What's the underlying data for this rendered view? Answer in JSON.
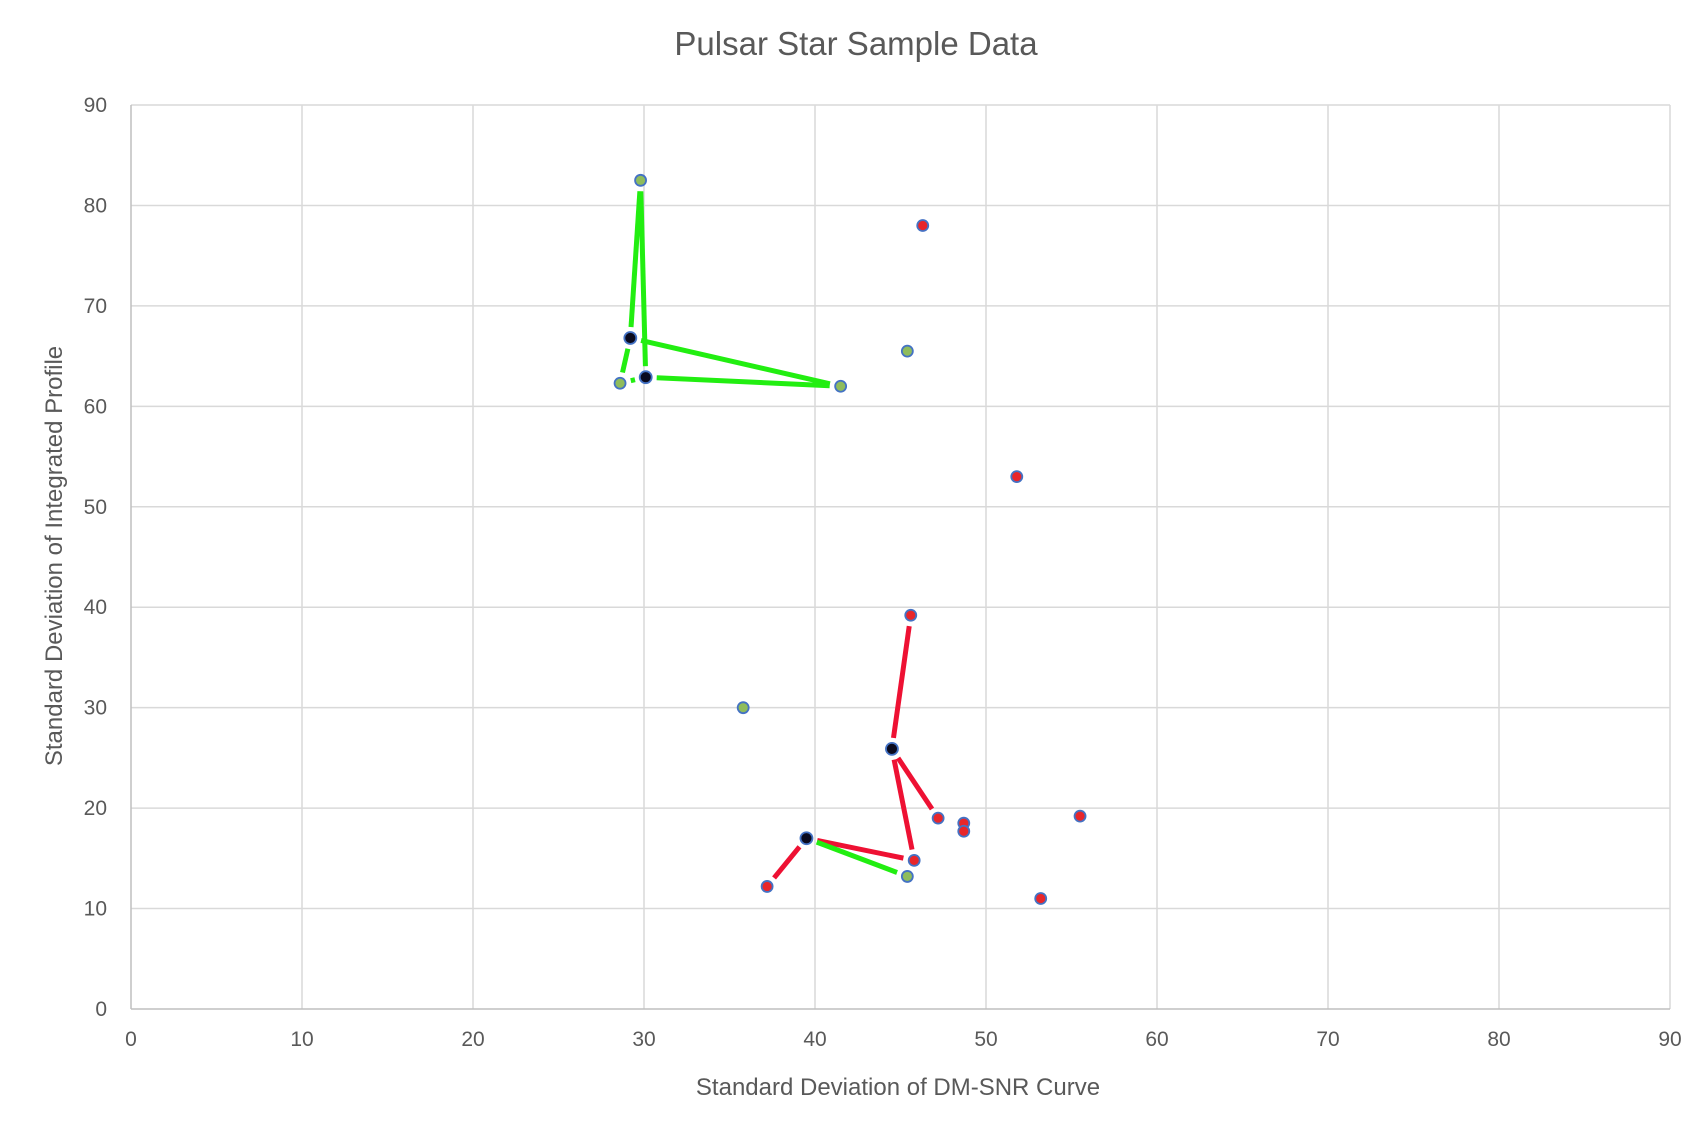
{
  "chart_data": {
    "type": "scatter",
    "title": "Pulsar Star Sample Data",
    "xlabel": "Standard Deviation of DM-SNR Curve",
    "ylabel": "Standard Deviation of Integrated Profile",
    "xlim": [
      0,
      90
    ],
    "ylim": [
      0,
      90
    ],
    "x_ticks": [
      0,
      10,
      20,
      30,
      40,
      50,
      60,
      70,
      80,
      90
    ],
    "y_ticks": [
      0,
      10,
      20,
      30,
      40,
      50,
      60,
      70,
      80,
      90
    ],
    "grid": true,
    "legend": "none",
    "colors": {
      "green_fill": "#8fbc5c",
      "red_fill": "#e8262a",
      "center_fill": "#0a0a1e",
      "point_edge": "#4472c4",
      "green_line": "#22ee11",
      "red_line": "#ee1133"
    },
    "series": [
      {
        "color_key": "green_fill",
        "points": [
          [
            29.8,
            82.5
          ],
          [
            28.6,
            62.3
          ],
          [
            41.5,
            62.0
          ],
          [
            45.4,
            65.5
          ],
          [
            35.8,
            30.0
          ],
          [
            45.4,
            13.2
          ]
        ]
      },
      {
        "color_key": "red_fill",
        "points": [
          [
            46.3,
            78.0
          ],
          [
            51.8,
            53.0
          ],
          [
            45.6,
            39.2
          ],
          [
            47.2,
            19.0
          ],
          [
            48.7,
            18.5
          ],
          [
            48.7,
            17.7
          ],
          [
            55.5,
            19.2
          ],
          [
            45.8,
            14.8
          ],
          [
            37.2,
            12.2
          ],
          [
            53.2,
            11.0
          ]
        ]
      },
      {
        "color_key": "center_fill",
        "points": [
          [
            29.2,
            66.8
          ],
          [
            30.1,
            62.9
          ],
          [
            44.5,
            25.9
          ],
          [
            39.5,
            17.0
          ]
        ]
      }
    ],
    "connectors": [
      {
        "color_key": "green_line",
        "from": [
          29.2,
          66.8
        ],
        "to": [
          29.8,
          82.5
        ]
      },
      {
        "color_key": "green_line",
        "from": [
          29.2,
          66.8
        ],
        "to": [
          28.6,
          62.3
        ]
      },
      {
        "color_key": "green_line",
        "from": [
          29.2,
          66.8
        ],
        "to": [
          41.5,
          62.0
        ]
      },
      {
        "color_key": "green_line",
        "from": [
          30.1,
          62.9
        ],
        "to": [
          29.8,
          82.5
        ]
      },
      {
        "color_key": "green_line",
        "from": [
          30.1,
          62.9
        ],
        "to": [
          28.6,
          62.3
        ]
      },
      {
        "color_key": "green_line",
        "from": [
          30.1,
          62.9
        ],
        "to": [
          41.5,
          62.0
        ]
      },
      {
        "color_key": "red_line",
        "from": [
          44.5,
          25.9
        ],
        "to": [
          45.6,
          39.2
        ]
      },
      {
        "color_key": "red_line",
        "from": [
          44.5,
          25.9
        ],
        "to": [
          47.2,
          19.0
        ]
      },
      {
        "color_key": "red_line",
        "from": [
          44.5,
          25.9
        ],
        "to": [
          45.8,
          14.8
        ]
      },
      {
        "color_key": "red_line",
        "from": [
          39.5,
          17.0
        ],
        "to": [
          45.8,
          14.8
        ]
      },
      {
        "color_key": "red_line",
        "from": [
          39.5,
          17.0
        ],
        "to": [
          37.2,
          12.2
        ]
      },
      {
        "color_key": "green_line",
        "from": [
          39.5,
          17.0
        ],
        "to": [
          45.4,
          13.2
        ]
      }
    ]
  }
}
